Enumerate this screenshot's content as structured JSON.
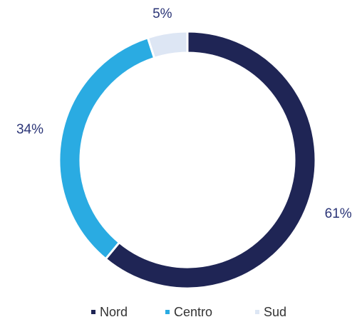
{
  "chart_data": {
    "type": "pie",
    "donut": true,
    "categories": [
      "Nord",
      "Centro",
      "Sud"
    ],
    "values": [
      61,
      34,
      5
    ],
    "value_labels": [
      "61%",
      "34%",
      "5%"
    ],
    "colors": [
      "#1f2555",
      "#2aabe2",
      "#dde6f4"
    ],
    "legend": "bottom"
  }
}
